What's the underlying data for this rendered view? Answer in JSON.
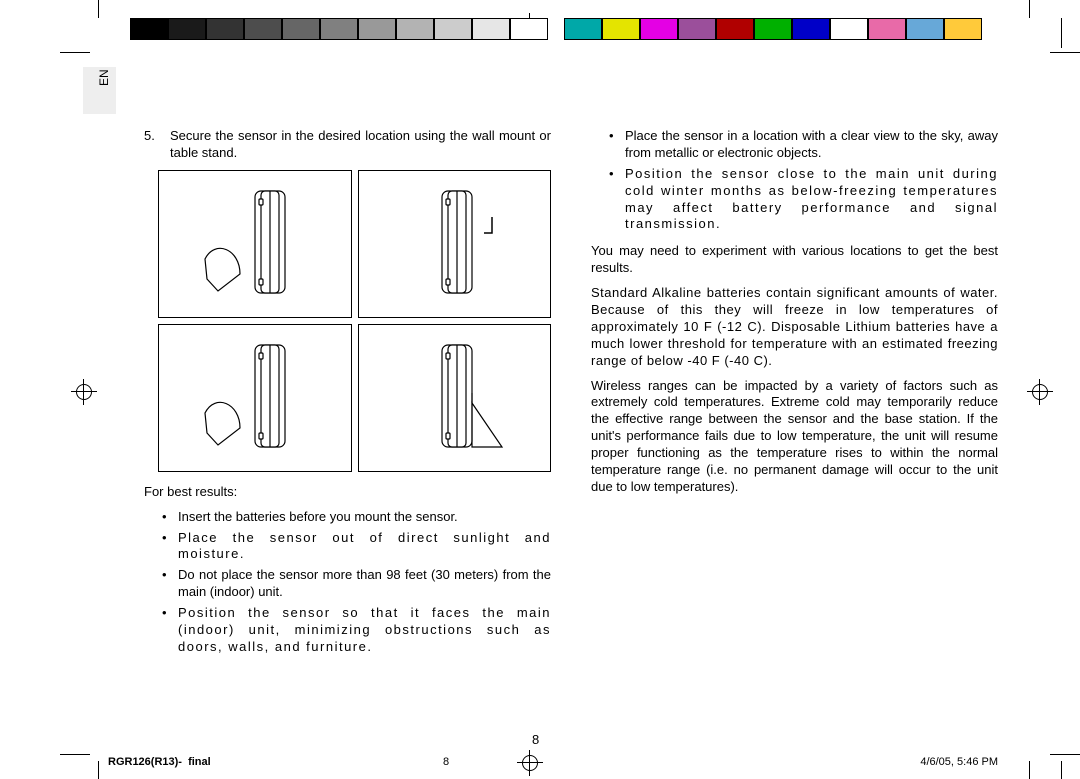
{
  "lang_tab": "EN",
  "page_number_display": "8",
  "footer": {
    "doc": "RGR126(R13)-  final",
    "page": "8",
    "date": "4/6/05, 5:46 PM"
  },
  "reg_grays": [
    "#000000",
    "#1a1a1a",
    "#333333",
    "#4d4d4d",
    "#666666",
    "#808080",
    "#999999",
    "#b3b3b3",
    "#cccccc",
    "#e6e6e6",
    "#ffffff"
  ],
  "reg_colors": [
    "#00a8a8",
    "#e4e400",
    "#e400e4",
    "#9b4f9b",
    "#b00000",
    "#00b000",
    "#0000c8",
    "#ffffff",
    "#e86aa8",
    "#67a8d8",
    "#ffca3a"
  ],
  "left": {
    "step5_num": "5.",
    "step5_text": "Secure the sensor in the desired location using the wall mount or table stand.",
    "best_results_heading": "For best results:",
    "bullets": [
      "Insert the batteries before you mount the sensor.",
      "Place the sensor out of direct sunlight and moisture.",
      "Do not place the sensor more than 98 feet (30 meters) from the main (indoor) unit.",
      "Position the sensor so that it faces the main (indoor) unit, minimizing obstructions such as doors, walls, and furniture."
    ]
  },
  "right": {
    "bullets": [
      "Place the sensor in a location with a clear view to the sky, away from metallic or electronic objects.",
      "Position the sensor close to the main unit during cold winter months as below-freezing temperatures may affect battery performance and signal transmission."
    ],
    "p1": "You may need to experiment with various locations to get the best results.",
    "p2": "Standard Alkaline batteries contain significant amounts of water. Because of this they will freeze in low temperatures of approximately 10 F (-12 C). Disposable Lithium batteries have a much lower threshold for temperature with an estimated freezing range of below -40 F (-40 C).",
    "p3": "Wireless ranges can be impacted by a variety of factors such as extremely cold temperatures. Extreme cold may temporarily reduce the effective range between the sensor and the base station. If the unit's performance fails due to low temperature, the unit will resume proper functioning as the temperature rises to within the normal temperature range (i.e. no permanent damage will occur to the unit due to low temperatures)."
  },
  "figures": {
    "count": 4,
    "layout": "2x2",
    "stroke_color": "#000000",
    "fill_color": "#ffffff"
  }
}
